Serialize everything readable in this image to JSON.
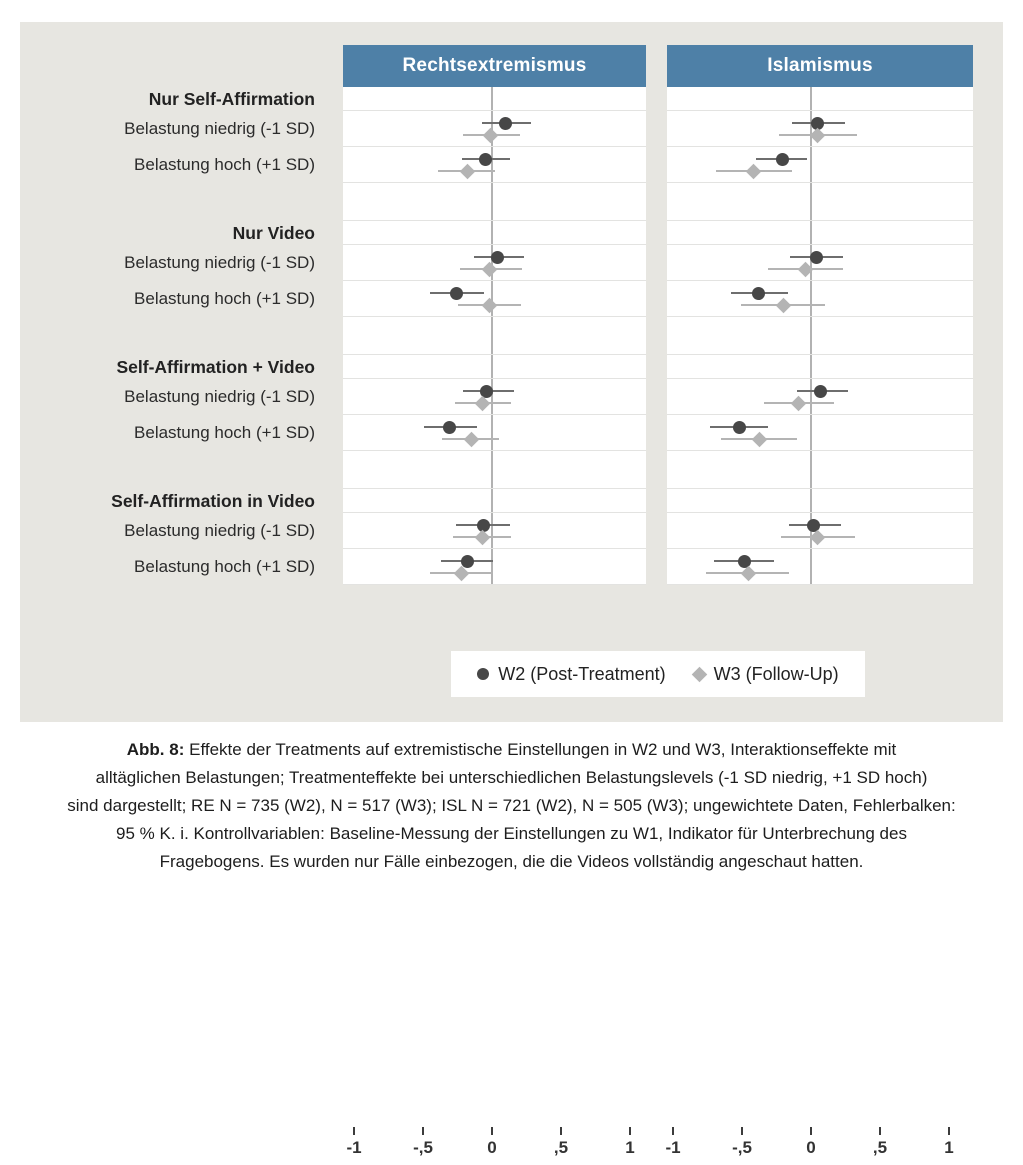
{
  "chart_data": {
    "type": "scatter",
    "variant": "forest-dot-plot-with-95ci-error-bars",
    "panels": [
      "Rechtsextremismus",
      "Islamismus"
    ],
    "panel_header_color": "#4e80a7",
    "plot_background": "#ffffff",
    "figure_background": "#e7e6e1",
    "x_axis": {
      "range": [
        -1,
        1
      ],
      "ticks": [
        -1,
        -0.5,
        0,
        0.5,
        1
      ],
      "tick_labels": [
        "-1",
        "-,5",
        "0",
        ",5",
        "1"
      ],
      "zero_reference_line": true,
      "grid": "horizontal row separators"
    },
    "legend": {
      "position": "bottom-center",
      "entries": [
        {
          "name": "W2 (Post-Treatment)",
          "marker": "circle",
          "marker_color": "#474747",
          "ci_color": "#6e6e6e"
        },
        {
          "name": "W3 (Follow-Up)",
          "marker": "diamond",
          "marker_color": "#b4b4b4",
          "ci_color": "#b4b4b4"
        }
      ]
    },
    "row_label_niedrig": "Belastung niedrig (-1 SD)",
    "row_label_hoch": "Belastung hoch (+1 SD)",
    "groups": [
      {
        "label": "Nur Self-Affirmation",
        "rows": [
          {
            "label": "Belastung niedrig (-1 SD)",
            "panels": [
              {
                "W2": [
                  0.1,
                  -0.07,
                  0.28
                ],
                "W3": [
                  -0.01,
                  -0.21,
                  0.2
                ]
              },
              {
                "W2": [
                  0.05,
                  -0.14,
                  0.25
                ],
                "W3": [
                  0.05,
                  -0.23,
                  0.33
                ]
              }
            ]
          },
          {
            "label": "Belastung hoch (+1 SD)",
            "panels": [
              {
                "W2": [
                  -0.05,
                  -0.22,
                  0.13
                ],
                "W3": [
                  -0.18,
                  -0.39,
                  0.02
                ]
              },
              {
                "W2": [
                  -0.21,
                  -0.4,
                  -0.03
                ],
                "W3": [
                  -0.42,
                  -0.69,
                  -0.14
                ]
              }
            ]
          }
        ]
      },
      {
        "label": "Nur Video",
        "rows": [
          {
            "label": "Belastung niedrig (-1 SD)",
            "panels": [
              {
                "W2": [
                  0.04,
                  -0.13,
                  0.23
                ],
                "W3": [
                  -0.02,
                  -0.23,
                  0.22
                ]
              },
              {
                "W2": [
                  0.04,
                  -0.15,
                  0.23
                ],
                "W3": [
                  -0.04,
                  -0.31,
                  0.23
                ]
              }
            ]
          },
          {
            "label": "Belastung hoch (+1 SD)",
            "panels": [
              {
                "W2": [
                  -0.26,
                  -0.45,
                  -0.06
                ],
                "W3": [
                  -0.02,
                  -0.25,
                  0.21
                ]
              },
              {
                "W2": [
                  -0.38,
                  -0.58,
                  -0.17
                ],
                "W3": [
                  -0.2,
                  -0.51,
                  0.1
                ]
              }
            ]
          }
        ]
      },
      {
        "label": "Self-Affirmation + Video",
        "rows": [
          {
            "label": "Belastung niedrig (-1 SD)",
            "panels": [
              {
                "W2": [
                  -0.04,
                  -0.21,
                  0.16
                ],
                "W3": [
                  -0.07,
                  -0.27,
                  0.14
                ]
              },
              {
                "W2": [
                  0.07,
                  -0.1,
                  0.27
                ],
                "W3": [
                  -0.09,
                  -0.34,
                  0.17
                ]
              }
            ]
          },
          {
            "label": "Belastung hoch (+1 SD)",
            "panels": [
              {
                "W2": [
                  -0.31,
                  -0.49,
                  -0.11
                ],
                "W3": [
                  -0.15,
                  -0.36,
                  0.05
                ]
              },
              {
                "W2": [
                  -0.52,
                  -0.73,
                  -0.31
                ],
                "W3": [
                  -0.37,
                  -0.65,
                  -0.1
                ]
              }
            ]
          }
        ]
      },
      {
        "label": "Self-Affirmation in Video",
        "rows": [
          {
            "label": "Belastung niedrig (-1 SD)",
            "panels": [
              {
                "W2": [
                  -0.06,
                  -0.26,
                  0.13
                ],
                "W3": [
                  -0.07,
                  -0.28,
                  0.14
                ]
              },
              {
                "W2": [
                  0.02,
                  -0.16,
                  0.22
                ],
                "W3": [
                  0.05,
                  -0.22,
                  0.32
                ]
              }
            ]
          },
          {
            "label": "Belastung hoch (+1 SD)",
            "panels": [
              {
                "W2": [
                  -0.18,
                  -0.37,
                  0.01
                ],
                "W3": [
                  -0.22,
                  -0.45,
                  0.01
                ]
              },
              {
                "W2": [
                  -0.48,
                  -0.7,
                  -0.27
                ],
                "W3": [
                  -0.45,
                  -0.76,
                  -0.16
                ]
              }
            ]
          }
        ]
      }
    ]
  },
  "caption": {
    "label": "Abb. 8:",
    "lines": [
      "Effekte der Treatments auf extremistische Einstellungen in W2 und W3, Interaktionseffekte mit",
      "alltäglichen Belastungen; Treatmenteffekte bei unterschiedlichen Belastungslevels (-1 SD niedrig, +1 SD hoch)",
      "sind dargestellt; RE N = 735 (W2), N = 517 (W3); ISL N = 721 (W2), N = 505 (W3); ungewichtete Daten, Fehlerbalken:",
      "95 % K. i. Kontrollvariablen: Baseline-Messung der Einstellungen zu W1, Indikator für Unterbrechung des",
      "Fragebogens. Es wurden nur Fälle einbezogen, die die Videos vollständig angeschaut hatten."
    ]
  }
}
